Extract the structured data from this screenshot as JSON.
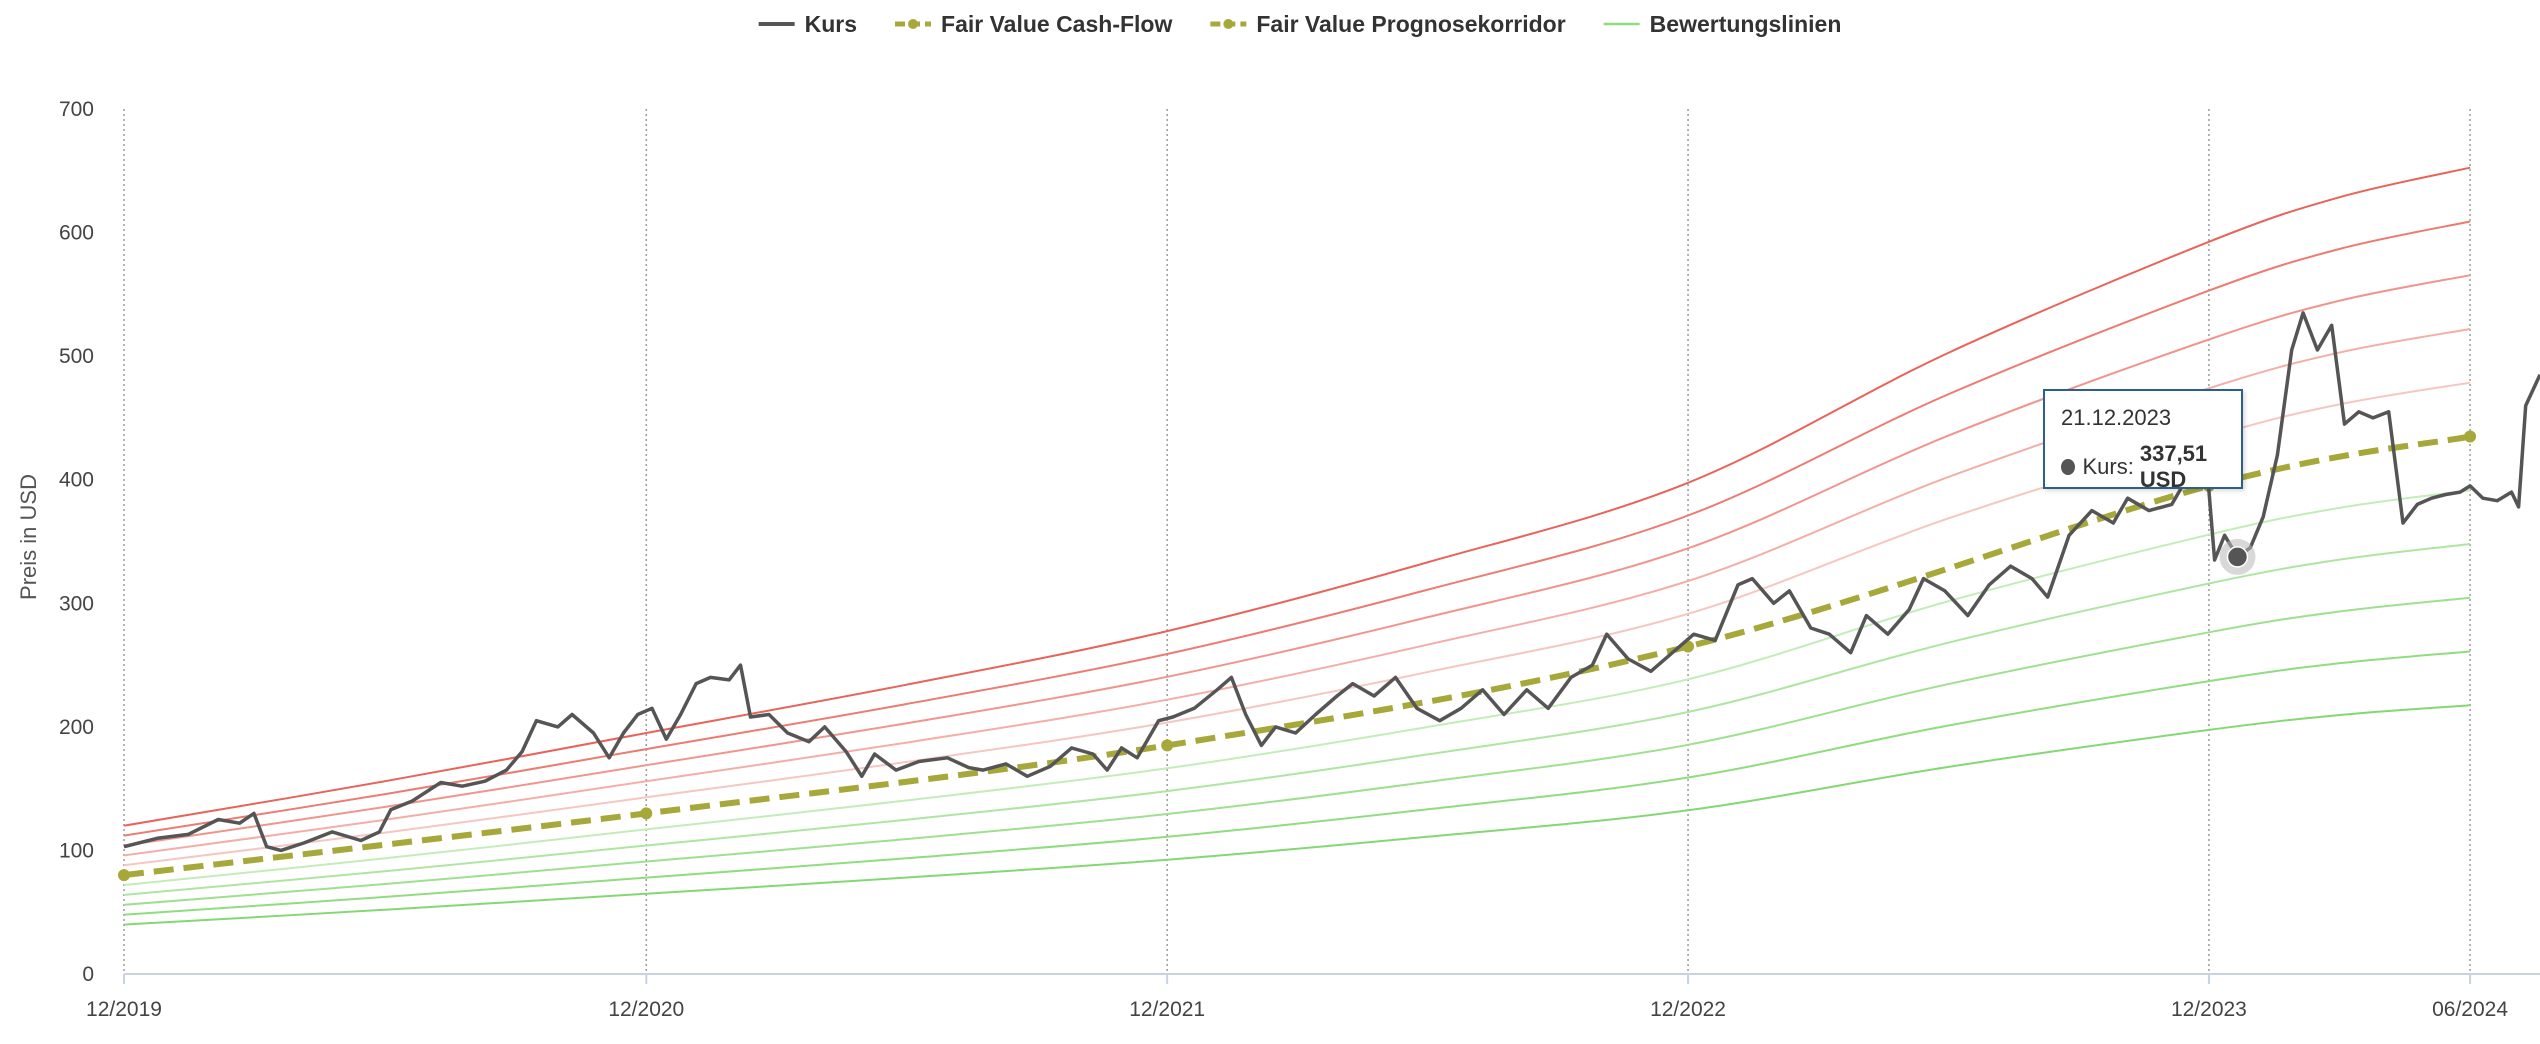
{
  "chart_data": {
    "type": "line",
    "title": "",
    "ylabel": "Preis in USD",
    "xlabel": "",
    "ylim": [
      0,
      700
    ],
    "yticks": [
      0,
      100,
      200,
      300,
      400,
      500,
      600,
      700
    ],
    "xlim": [
      "2019-12-01",
      "2024-07-20"
    ],
    "xticks": [
      {
        "date": "2019-12-01",
        "label": "12/2019"
      },
      {
        "date": "2020-12-01",
        "label": "12/2020"
      },
      {
        "date": "2021-12-01",
        "label": "12/2021"
      },
      {
        "date": "2022-12-01",
        "label": "12/2022"
      },
      {
        "date": "2023-12-01",
        "label": "12/2023"
      },
      {
        "date": "2024-06-01",
        "label": "06/2024"
      }
    ],
    "grid": "vertical dotted lines at x ticks",
    "legend_position": "top-center",
    "legend": [
      {
        "label": "Kurs",
        "color": "#555555",
        "style": "solid"
      },
      {
        "label": "Fair Value Cash-Flow",
        "color": "#a6a83a",
        "style": "dashed-marker"
      },
      {
        "label": "Fair Value Prognosekorridor",
        "color": "#a6a83a",
        "style": "dashed-marker"
      },
      {
        "label": "Bewertungslinien",
        "color": "#8fdc7e",
        "style": "solid"
      }
    ],
    "fair_value": {
      "name": "Fair Value Cash-Flow",
      "color": "#a6a83a",
      "points": [
        [
          "2019-12-01",
          80
        ],
        [
          "2020-12-01",
          130
        ],
        [
          "2021-12-01",
          185
        ],
        [
          "2022-12-01",
          265
        ],
        [
          "2023-12-01",
          395
        ],
        [
          "2024-06-01",
          435
        ]
      ]
    },
    "valuation_lines": {
      "name": "Bewertungslinien",
      "dates": [
        "2019-12-01",
        "2020-06-01",
        "2020-12-01",
        "2021-06-01",
        "2021-12-01",
        "2022-06-01",
        "2022-12-01",
        "2023-06-01",
        "2023-12-01",
        "2024-03-01",
        "2024-06-01"
      ],
      "base": [
        80,
        104,
        130,
        156,
        185,
        222,
        265,
        335,
        395,
        419,
        435
      ],
      "multipliers": [
        1.5,
        1.4,
        1.3,
        1.2,
        1.1,
        0.9,
        0.8,
        0.7,
        0.6,
        0.5
      ],
      "colors": [
        "#e8635a",
        "#ec7b72",
        "#f0958d",
        "#f3aea8",
        "#f6c6c1",
        "#c4ecb8",
        "#aee5a0",
        "#9ee08f",
        "#90dc80",
        "#84d873"
      ]
    },
    "kurs": {
      "name": "Kurs",
      "color": "#555555",
      "points": [
        [
          "2019-12-01",
          103
        ],
        [
          "2019-12-25",
          110
        ],
        [
          "2020-01-15",
          113
        ],
        [
          "2020-02-05",
          125
        ],
        [
          "2020-02-20",
          122
        ],
        [
          "2020-03-01",
          130
        ],
        [
          "2020-03-10",
          103
        ],
        [
          "2020-03-20",
          100
        ],
        [
          "2020-04-05",
          106
        ],
        [
          "2020-04-25",
          115
        ],
        [
          "2020-05-15",
          108
        ],
        [
          "2020-05-28",
          115
        ],
        [
          "2020-06-05",
          133
        ],
        [
          "2020-06-20",
          140
        ],
        [
          "2020-07-10",
          155
        ],
        [
          "2020-07-25",
          152
        ],
        [
          "2020-08-10",
          156
        ],
        [
          "2020-08-25",
          165
        ],
        [
          "2020-09-05",
          180
        ],
        [
          "2020-09-15",
          205
        ],
        [
          "2020-09-30",
          200
        ],
        [
          "2020-10-10",
          210
        ],
        [
          "2020-10-25",
          195
        ],
        [
          "2020-11-05",
          175
        ],
        [
          "2020-11-15",
          195
        ],
        [
          "2020-11-25",
          210
        ],
        [
          "2020-12-05",
          215
        ],
        [
          "2020-12-15",
          190
        ],
        [
          "2020-12-25",
          210
        ],
        [
          "2021-01-05",
          235
        ],
        [
          "2021-01-15",
          240
        ],
        [
          "2021-01-28",
          238
        ],
        [
          "2021-02-05",
          250
        ],
        [
          "2021-02-12",
          208
        ],
        [
          "2021-02-25",
          210
        ],
        [
          "2021-03-10",
          195
        ],
        [
          "2021-03-25",
          188
        ],
        [
          "2021-04-05",
          200
        ],
        [
          "2021-04-20",
          180
        ],
        [
          "2021-05-01",
          160
        ],
        [
          "2021-05-10",
          178
        ],
        [
          "2021-05-25",
          165
        ],
        [
          "2021-06-10",
          172
        ],
        [
          "2021-06-30",
          175
        ],
        [
          "2021-07-15",
          167
        ],
        [
          "2021-07-25",
          165
        ],
        [
          "2021-08-10",
          170
        ],
        [
          "2021-08-25",
          160
        ],
        [
          "2021-09-10",
          168
        ],
        [
          "2021-09-25",
          183
        ],
        [
          "2021-10-10",
          178
        ],
        [
          "2021-10-20",
          165
        ],
        [
          "2021-10-30",
          183
        ],
        [
          "2021-11-10",
          175
        ],
        [
          "2021-11-25",
          205
        ],
        [
          "2021-12-05",
          208
        ],
        [
          "2021-12-20",
          215
        ],
        [
          "2022-01-05",
          230
        ],
        [
          "2022-01-15",
          240
        ],
        [
          "2022-01-25",
          210
        ],
        [
          "2022-02-05",
          185
        ],
        [
          "2022-02-15",
          200
        ],
        [
          "2022-03-01",
          195
        ],
        [
          "2022-03-15",
          210
        ],
        [
          "2022-03-30",
          225
        ],
        [
          "2022-04-10",
          235
        ],
        [
          "2022-04-25",
          225
        ],
        [
          "2022-05-10",
          240
        ],
        [
          "2022-05-25",
          215
        ],
        [
          "2022-06-10",
          205
        ],
        [
          "2022-06-25",
          215
        ],
        [
          "2022-07-10",
          230
        ],
        [
          "2022-07-25",
          210
        ],
        [
          "2022-08-10",
          230
        ],
        [
          "2022-08-25",
          215
        ],
        [
          "2022-09-10",
          240
        ],
        [
          "2022-09-25",
          250
        ],
        [
          "2022-10-05",
          275
        ],
        [
          "2022-10-20",
          255
        ],
        [
          "2022-11-05",
          245
        ],
        [
          "2022-11-20",
          260
        ],
        [
          "2022-12-05",
          275
        ],
        [
          "2022-12-20",
          270
        ],
        [
          "2023-01-05",
          315
        ],
        [
          "2023-01-15",
          320
        ],
        [
          "2023-01-30",
          300
        ],
        [
          "2023-02-10",
          310
        ],
        [
          "2023-02-25",
          280
        ],
        [
          "2023-03-10",
          275
        ],
        [
          "2023-03-25",
          260
        ],
        [
          "2023-04-05",
          290
        ],
        [
          "2023-04-20",
          275
        ],
        [
          "2023-05-05",
          295
        ],
        [
          "2023-05-15",
          320
        ],
        [
          "2023-05-30",
          310
        ],
        [
          "2023-06-15",
          290
        ],
        [
          "2023-06-30",
          315
        ],
        [
          "2023-07-15",
          330
        ],
        [
          "2023-07-30",
          320
        ],
        [
          "2023-08-10",
          305
        ],
        [
          "2023-08-25",
          355
        ],
        [
          "2023-09-10",
          375
        ],
        [
          "2023-09-25",
          365
        ],
        [
          "2023-10-05",
          385
        ],
        [
          "2023-10-20",
          375
        ],
        [
          "2023-11-05",
          380
        ],
        [
          "2023-11-20",
          410
        ],
        [
          "2023-11-30",
          405
        ],
        [
          "2023-12-05",
          335
        ],
        [
          "2023-12-12",
          355
        ],
        [
          "2023-12-21",
          337.51
        ],
        [
          "2023-12-30",
          345
        ],
        [
          "2024-01-08",
          370
        ],
        [
          "2024-01-18",
          420
        ],
        [
          "2024-01-28",
          505
        ],
        [
          "2024-02-05",
          535
        ],
        [
          "2024-02-15",
          505
        ],
        [
          "2024-02-25",
          525
        ],
        [
          "2024-03-05",
          445
        ],
        [
          "2024-03-15",
          455
        ],
        [
          "2024-03-25",
          450
        ],
        [
          "2024-04-05",
          455
        ],
        [
          "2024-04-15",
          365
        ],
        [
          "2024-04-25",
          380
        ],
        [
          "2024-05-05",
          385
        ],
        [
          "2024-05-15",
          388
        ],
        [
          "2024-05-25",
          390
        ],
        [
          "2024-06-01",
          395
        ],
        [
          "2024-06-10",
          385
        ],
        [
          "2024-06-20",
          383
        ],
        [
          "2024-06-30",
          390
        ],
        [
          "2024-07-05",
          378
        ],
        [
          "2024-07-10",
          460
        ],
        [
          "2024-07-20",
          485
        ]
      ]
    },
    "highlight": {
      "date": "2023-12-21",
      "value": 337.51
    }
  },
  "tooltip": {
    "date": "21.12.2023",
    "label": "Kurs:",
    "value": "337,51 USD"
  }
}
